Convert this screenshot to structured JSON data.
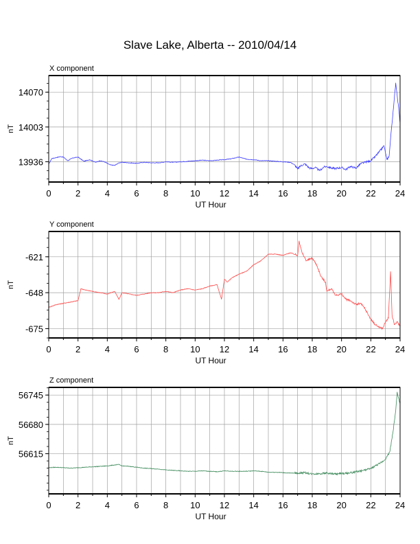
{
  "title": "Slave Lake, Alberta -- 2010/04/14",
  "colors": {
    "x_series": "#3b3bff",
    "y_series": "#ff4a4a",
    "z_series": "#3d8a5a",
    "grid": "#a0a0a0",
    "frame": "#000000"
  },
  "chart_data": [
    {
      "type": "line",
      "title": "X component",
      "xlabel": "UT Hour",
      "ylabel": "nT",
      "xlim": [
        0,
        24
      ],
      "ylim": [
        13897,
        14102
      ],
      "x_ticks": [
        "0",
        "2",
        "4",
        "6",
        "8",
        "10",
        "12",
        "14",
        "16",
        "18",
        "20",
        "22",
        "24"
      ],
      "y_ticks": [
        {
          "value": 13936,
          "label": "13936"
        },
        {
          "value": 14003,
          "label": "14003"
        },
        {
          "value": 14070,
          "label": "14070"
        }
      ],
      "grid": true,
      "series": [
        {
          "color": "#3b3bff",
          "x": [
            0,
            0.2,
            0.5,
            0.8,
            1.0,
            1.3,
            1.6,
            2.0,
            2.4,
            2.8,
            3.2,
            3.5,
            3.8,
            4.0,
            4.2,
            4.5,
            4.8,
            5.0,
            5.5,
            6.0,
            6.5,
            7.0,
            7.5,
            8.0,
            8.5,
            9.0,
            9.5,
            10.0,
            10.5,
            11.0,
            11.5,
            12.0,
            12.5,
            13.0,
            13.5,
            14.0,
            14.5,
            15.0,
            15.5,
            16.0,
            16.5,
            16.8,
            17.0,
            17.2,
            17.5,
            17.8,
            18.0,
            18.2,
            18.5,
            18.8,
            19.0,
            19.3,
            19.6,
            20.0,
            20.3,
            20.6,
            21.0,
            21.3,
            21.6,
            22.0,
            22.3,
            22.6,
            22.9,
            23.1,
            23.25,
            23.4,
            23.55,
            23.7,
            23.8,
            23.9,
            24.0
          ],
          "values": [
            13931,
            13942,
            13944,
            13946,
            13945,
            13938,
            13943,
            13945,
            13937,
            13940,
            13935,
            13938,
            13936,
            13933,
            13930,
            13929,
            13934,
            13935,
            13934,
            13933,
            13935,
            13934,
            13934,
            13936,
            13935,
            13936,
            13937,
            13938,
            13939,
            13938,
            13939,
            13940,
            13942,
            13945,
            13941,
            13940,
            13938,
            13938,
            13937,
            13936,
            13935,
            13930,
            13922,
            13928,
            13932,
            13924,
            13923,
            13925,
            13919,
            13926,
            13927,
            13924,
            13923,
            13925,
            13921,
            13927,
            13924,
            13932,
            13935,
            13938,
            13946,
            13956,
            13967,
            13940,
            13947,
            13997,
            14040,
            14088,
            14064,
            14040,
            14010
          ]
        }
      ]
    },
    {
      "type": "line",
      "title": "Y component",
      "xlabel": "UT Hour",
      "ylabel": "nT",
      "xlim": [
        0,
        24
      ],
      "ylim": [
        -682,
        -602
      ],
      "x_ticks": [
        "0",
        "2",
        "4",
        "6",
        "8",
        "10",
        "12",
        "14",
        "16",
        "18",
        "20",
        "22",
        "24"
      ],
      "y_ticks": [
        {
          "value": -621,
          "label": "-621"
        },
        {
          "value": -648,
          "label": "-648"
        },
        {
          "value": -675,
          "label": "-675"
        }
      ],
      "grid": true,
      "series": [
        {
          "color": "#ff4a4a",
          "x": [
            0,
            0.5,
            1.0,
            1.5,
            2.0,
            2.2,
            2.5,
            3.0,
            3.5,
            4.0,
            4.5,
            4.8,
            5.0,
            5.5,
            6.0,
            6.5,
            7.0,
            7.5,
            8.0,
            8.5,
            9.0,
            9.5,
            10.0,
            10.5,
            11.0,
            11.5,
            11.8,
            12.0,
            12.2,
            12.5,
            13.0,
            13.5,
            14.0,
            14.5,
            15.0,
            15.5,
            16.0,
            16.5,
            17.0,
            17.1,
            17.3,
            17.6,
            18.0,
            18.3,
            18.6,
            18.9,
            19.0,
            19.3,
            19.6,
            20.0,
            20.3,
            20.6,
            21.0,
            21.3,
            21.6,
            22.0,
            22.3,
            22.6,
            22.8,
            23.0,
            23.2,
            23.35,
            23.45,
            23.6,
            23.8,
            24.0
          ],
          "values": [
            -659,
            -657,
            -656,
            -655,
            -654,
            -645,
            -646,
            -647,
            -648,
            -649,
            -647,
            -653,
            -648,
            -649,
            -650,
            -649,
            -648,
            -648,
            -647,
            -648,
            -646,
            -645,
            -646,
            -645,
            -643,
            -642,
            -653,
            -638,
            -640,
            -637,
            -634,
            -632,
            -627,
            -624,
            -619,
            -619,
            -620,
            -618,
            -620,
            -609,
            -618,
            -624,
            -622,
            -627,
            -636,
            -640,
            -647,
            -645,
            -650,
            -649,
            -653,
            -654,
            -657,
            -656,
            -660,
            -668,
            -672,
            -674,
            -675,
            -670,
            -667,
            -632,
            -665,
            -672,
            -670,
            -673
          ]
        }
      ]
    },
    {
      "type": "line",
      "title": "Z component",
      "xlabel": "UT Hour",
      "ylabel": "nT",
      "xlim": [
        0,
        24
      ],
      "ylim": [
        56526,
        56762
      ],
      "x_ticks": [
        "0",
        "2",
        "4",
        "6",
        "8",
        "10",
        "12",
        "14",
        "16",
        "18",
        "20",
        "22",
        "24"
      ],
      "y_ticks": [
        {
          "value": 56615,
          "label": "56615"
        },
        {
          "value": 56680,
          "label": "56680"
        },
        {
          "value": 56745,
          "label": "56745"
        }
      ],
      "grid": true,
      "series": [
        {
          "color": "#3d8a5a",
          "x": [
            0,
            0.5,
            1.0,
            1.5,
            2.0,
            2.5,
            3.0,
            3.5,
            4.0,
            4.5,
            4.8,
            5.0,
            5.5,
            6.0,
            6.5,
            7.0,
            7.5,
            8.0,
            8.5,
            9.0,
            9.5,
            10.0,
            10.5,
            11.0,
            11.5,
            12.0,
            12.5,
            13.0,
            13.5,
            14.0,
            14.5,
            15.0,
            15.5,
            16.0,
            16.5,
            17.0,
            17.5,
            18.0,
            18.5,
            19.0,
            19.5,
            20.0,
            20.5,
            21.0,
            21.5,
            22.0,
            22.3,
            22.6,
            22.9,
            23.1,
            23.3,
            23.5,
            23.7,
            23.8,
            23.9,
            24.0
          ],
          "values": [
            56584,
            56585,
            56584,
            56583,
            56584,
            56585,
            56586,
            56587,
            56588,
            56590,
            56591,
            56588,
            56587,
            56585,
            56583,
            56582,
            56581,
            56579,
            56578,
            56577,
            56576,
            56576,
            56577,
            56576,
            56575,
            56577,
            56576,
            56576,
            56576,
            56577,
            56576,
            56574,
            56574,
            56573,
            56572,
            56572,
            56573,
            56570,
            56571,
            56572,
            56570,
            56571,
            56572,
            56575,
            56578,
            56582,
            56588,
            56593,
            56600,
            56608,
            56620,
            56660,
            56710,
            56752,
            56738,
            56725
          ]
        }
      ]
    }
  ]
}
